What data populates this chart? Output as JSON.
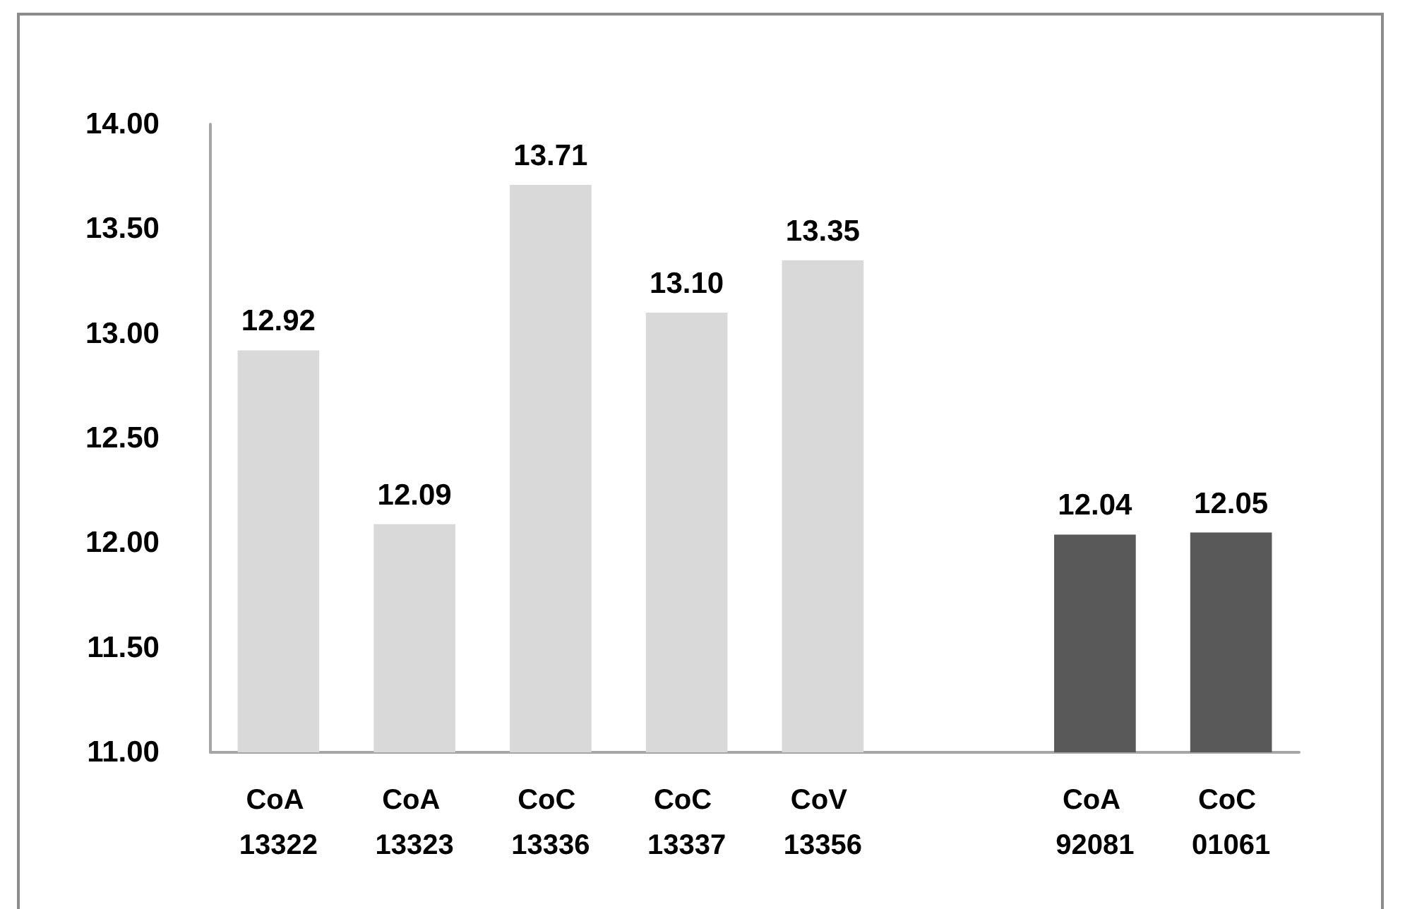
{
  "chart_data": {
    "type": "bar",
    "categories": [
      "CoA 13322",
      "CoA 13323",
      "CoC 13336",
      "CoC 13337",
      "CoV 13356",
      null,
      "CoA 92081",
      "CoC 01061"
    ],
    "values": [
      12.92,
      12.09,
      13.71,
      13.1,
      13.35,
      null,
      12.04,
      12.05
    ],
    "colors": [
      "#d9d9d9",
      "#d9d9d9",
      "#d9d9d9",
      "#d9d9d9",
      "#d9d9d9",
      null,
      "#595959",
      "#595959"
    ],
    "value_labels": [
      "12.92",
      "12.09",
      "13.71",
      "13.10",
      "13.35",
      null,
      "12.04",
      "12.05"
    ],
    "ylim": [
      11,
      14
    ],
    "yticks": [
      {
        "value": 11,
        "label": "11.00"
      },
      {
        "value": 11.5,
        "label": "11.50"
      },
      {
        "value": 12,
        "label": "12.00"
      },
      {
        "value": 12.5,
        "label": "12.50"
      },
      {
        "value": 13,
        "label": "13.00"
      },
      {
        "value": 13.5,
        "label": "13.50"
      },
      {
        "value": 14,
        "label": "14.00"
      }
    ],
    "grid": false
  }
}
